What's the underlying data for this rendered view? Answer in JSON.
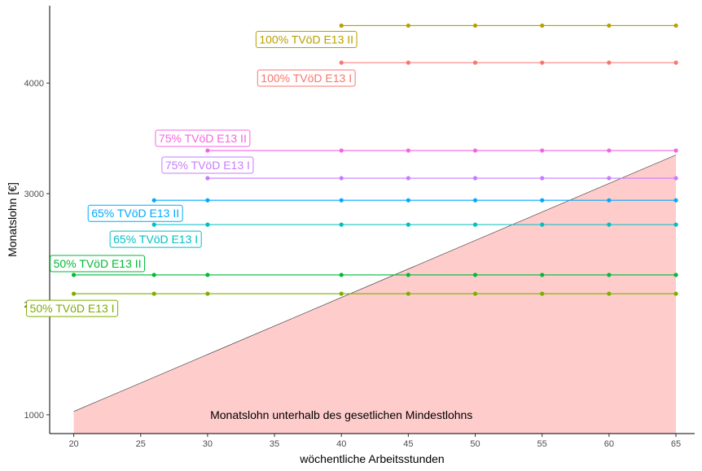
{
  "chart_data": {
    "type": "line",
    "xlabel": "wöchentliche Arbeitsstunden",
    "ylabel": "Monatslohn [€]",
    "xlim": [
      18.2,
      66.4
    ],
    "ylim": [
      830,
      4700
    ],
    "x_ticks": [
      20,
      25,
      30,
      35,
      40,
      45,
      50,
      55,
      60,
      65
    ],
    "y_ticks": [
      1000,
      2000,
      3000,
      4000
    ],
    "grid": false,
    "legend": "none",
    "area": {
      "label": "Monatslohn unterhalb des gesetlichen Mindestlohns",
      "color": "#ffcccc",
      "x": [
        20,
        65
      ],
      "y": [
        1030,
        3350
      ]
    },
    "series": [
      {
        "name": "100% TVöD E13 II",
        "color": "#b7a000",
        "x": [
          40,
          45,
          50,
          55,
          60,
          65
        ],
        "y": [
          4520,
          4520,
          4520,
          4520,
          4520,
          4520
        ]
      },
      {
        "name": "100% TVöD E13 I",
        "color": "#f8766d",
        "x": [
          40,
          45,
          50,
          55,
          60,
          65
        ],
        "y": [
          4185,
          4185,
          4185,
          4185,
          4185,
          4185
        ]
      },
      {
        "name": "75% TVöD E13 II",
        "color": "#f564e3",
        "x": [
          30,
          40,
          45,
          50,
          55,
          60,
          65
        ],
        "y": [
          3390,
          3390,
          3390,
          3390,
          3390,
          3390,
          3390
        ]
      },
      {
        "name": "75% TVöD E13 I",
        "color": "#c77cff",
        "x": [
          30,
          40,
          45,
          50,
          55,
          60,
          65
        ],
        "y": [
          3140,
          3140,
          3140,
          3140,
          3140,
          3140,
          3140
        ]
      },
      {
        "name": "65% TVöD E13 II",
        "color": "#00a9ff",
        "x": [
          26,
          30,
          40,
          45,
          50,
          55,
          60,
          65
        ],
        "y": [
          2940,
          2940,
          2940,
          2940,
          2940,
          2940,
          2940,
          2940
        ]
      },
      {
        "name": "65% TVöD E13 I",
        "color": "#00bfc4",
        "x": [
          26,
          30,
          40,
          45,
          50,
          55,
          60,
          65
        ],
        "y": [
          2720,
          2720,
          2720,
          2720,
          2720,
          2720,
          2720,
          2720
        ]
      },
      {
        "name": "50% TVöD E13 II",
        "color": "#00ba38",
        "x": [
          20,
          26,
          30,
          40,
          45,
          50,
          55,
          60,
          65
        ],
        "y": [
          2265,
          2265,
          2265,
          2265,
          2265,
          2265,
          2265,
          2265,
          2265
        ]
      },
      {
        "name": "50% TVöD E13 I",
        "color": "#7cae00",
        "x": [
          20,
          26,
          30,
          40,
          45,
          50,
          55,
          60,
          65
        ],
        "y": [
          2095,
          2095,
          2095,
          2095,
          2095,
          2095,
          2095,
          2095,
          2095
        ]
      }
    ]
  }
}
